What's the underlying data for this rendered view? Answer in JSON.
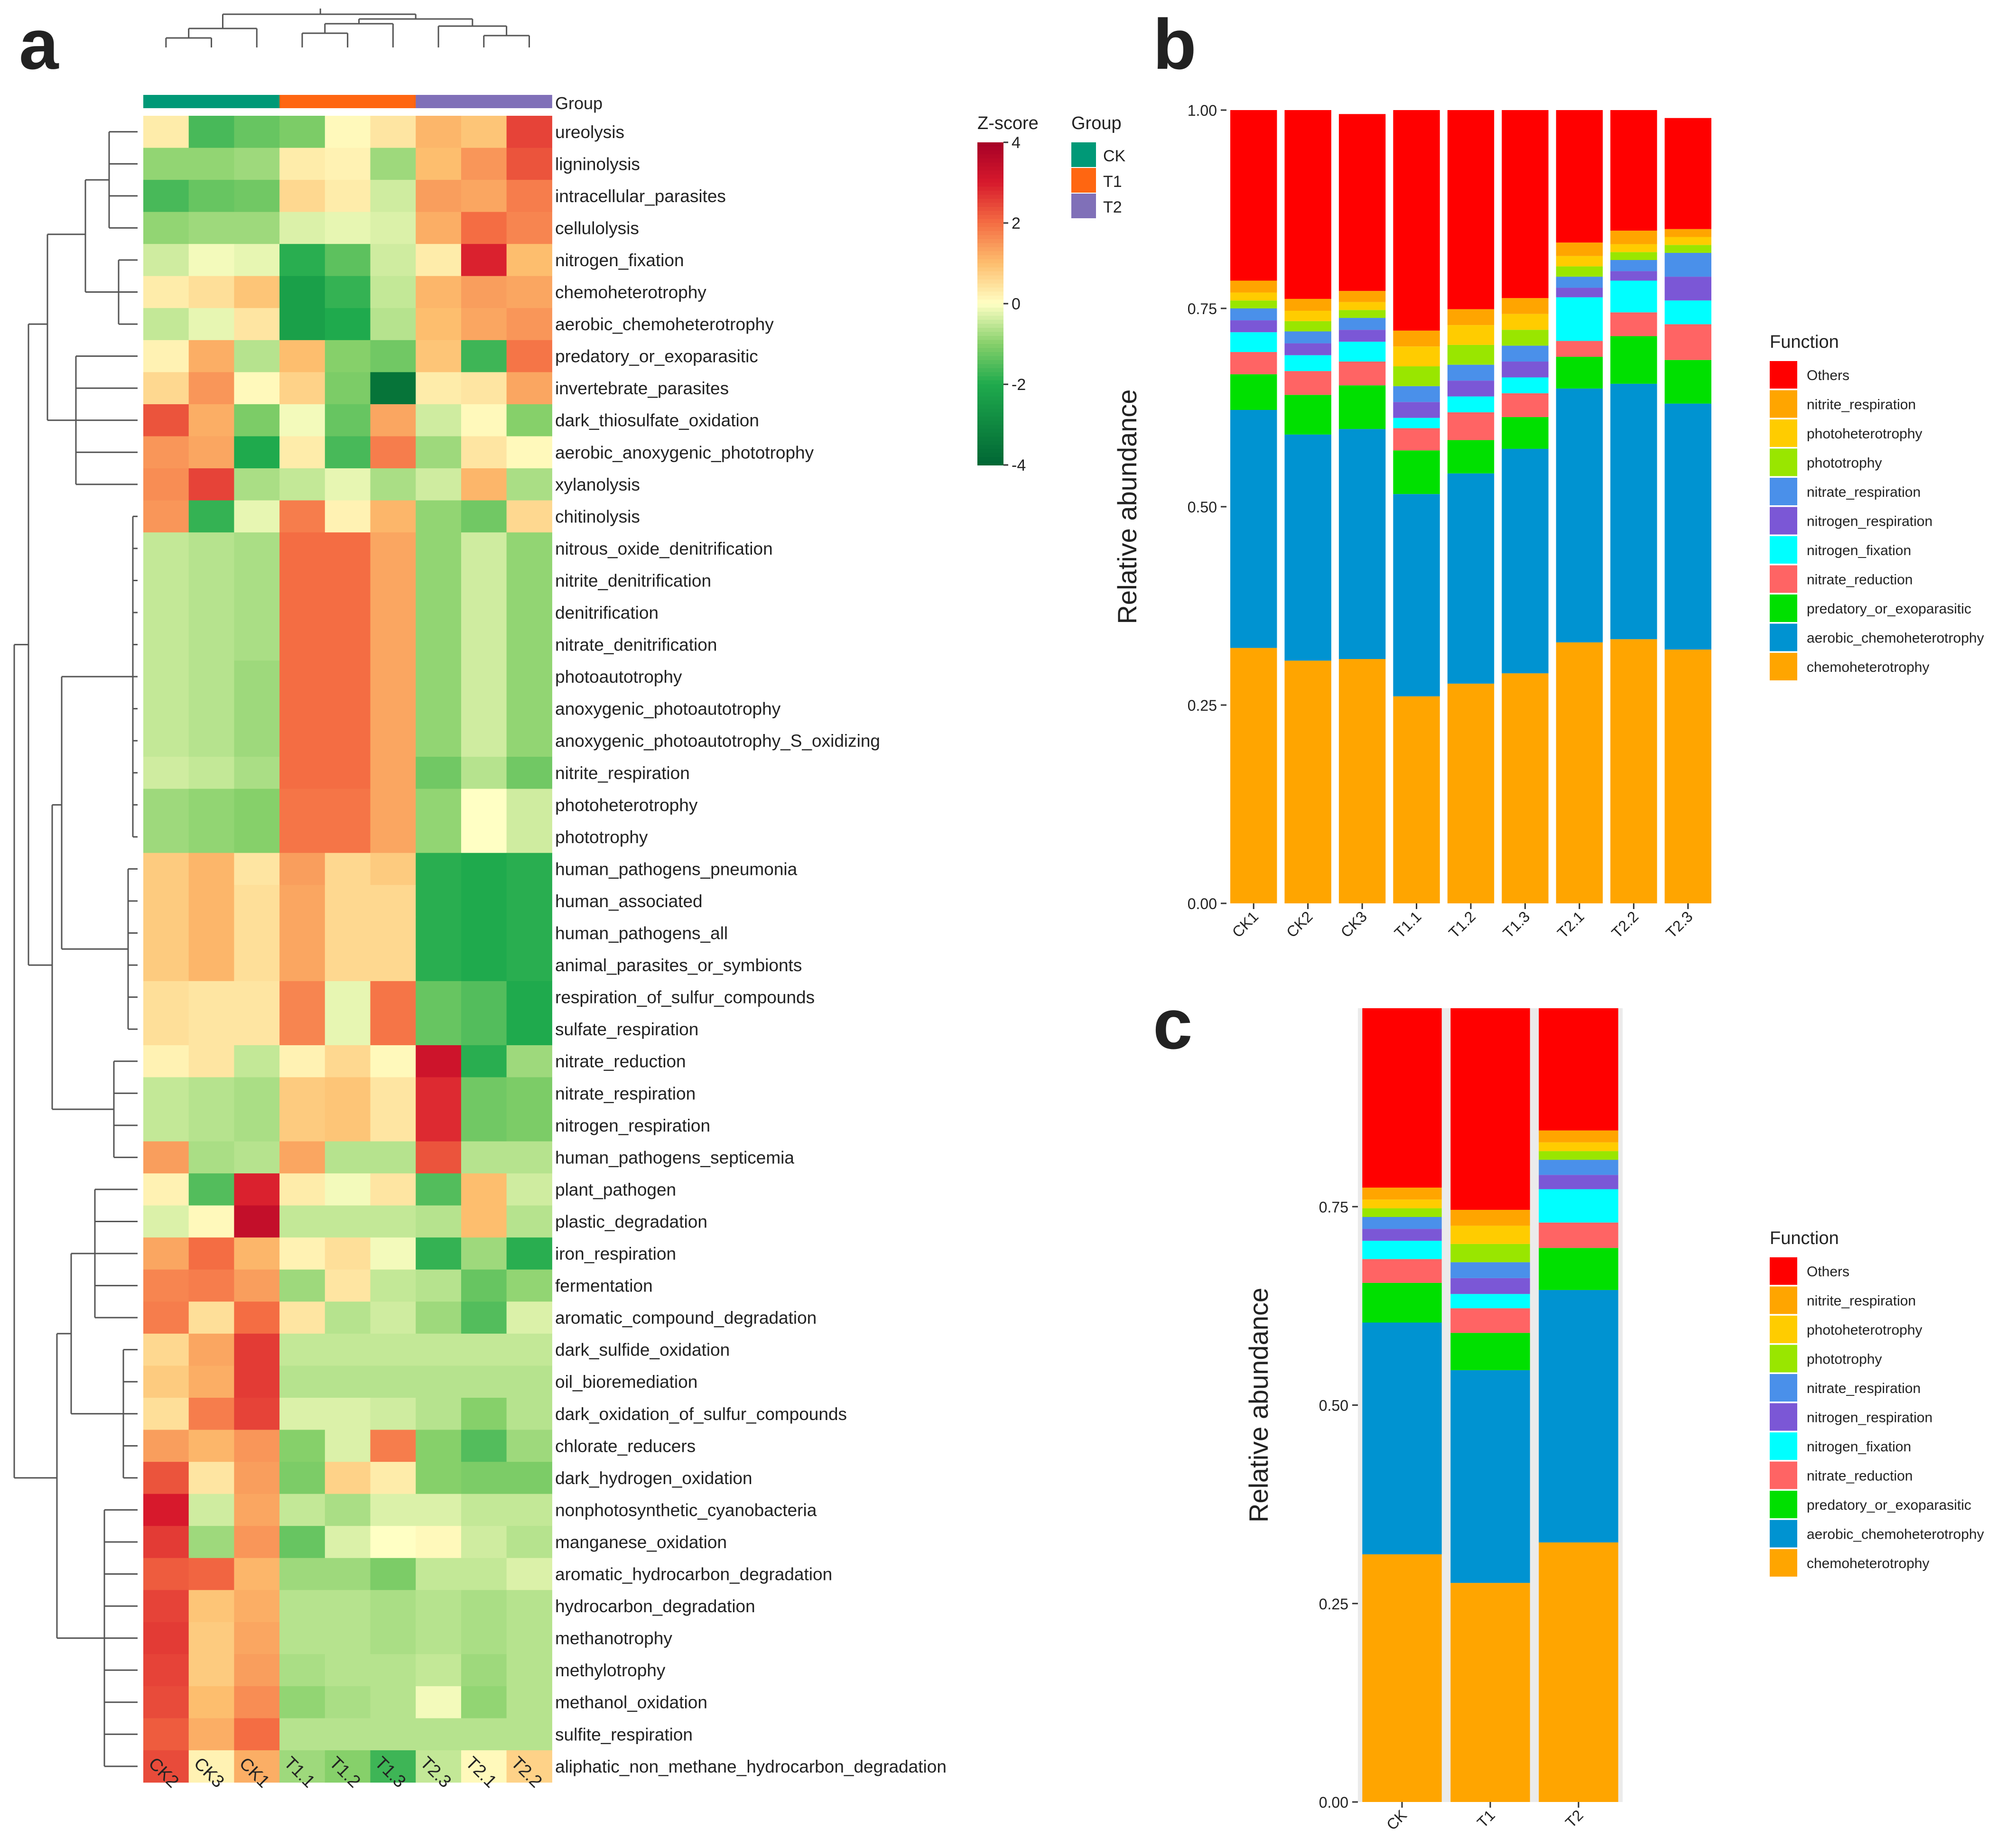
{
  "panel_letters": {
    "a": "a",
    "b": "b",
    "c": "c"
  },
  "heatmap": {
    "group_label": "Group",
    "columns": [
      "CK2",
      "CK3",
      "CK1",
      "T1.1",
      "T1.2",
      "T1.3",
      "T2.3",
      "T2.1",
      "T2.2"
    ],
    "column_groups": [
      "CK",
      "CK",
      "CK",
      "T1",
      "T1",
      "T1",
      "T2",
      "T2",
      "T2"
    ],
    "rows": [
      "ureolysis",
      "ligninolysis",
      "intracellular_parasites",
      "cellulolysis",
      "nitrogen_fixation",
      "chemoheterotrophy",
      "aerobic_chemoheterotrophy",
      "predatory_or_exoparasitic",
      "invertebrate_parasites",
      "dark_thiosulfate_oxidation",
      "aerobic_anoxygenic_phototrophy",
      "xylanolysis",
      "chitinolysis",
      "nitrous_oxide_denitrification",
      "nitrite_denitrification",
      "denitrification",
      "nitrate_denitrification",
      "photoautotrophy",
      "anoxygenic_photoautotrophy",
      "anoxygenic_photoautotrophy_S_oxidizing",
      "nitrite_respiration",
      "photoheterotrophy",
      "phototrophy",
      "human_pathogens_pneumonia",
      "human_associated",
      "human_pathogens_all",
      "animal_parasites_or_symbionts",
      "respiration_of_sulfur_compounds",
      "sulfate_respiration",
      "nitrate_reduction",
      "nitrate_respiration",
      "nitrogen_respiration",
      "human_pathogens_septicemia",
      "plant_pathogen",
      "plastic_degradation",
      "iron_respiration",
      "fermentation",
      "aromatic_compound_degradation",
      "dark_sulfide_oxidation",
      "oil_bioremediation",
      "dark_oxidation_of_sulfur_compounds",
      "chlorate_reducers",
      "dark_hydrogen_oxidation",
      "nonphotosynthetic_cyanobacteria",
      "manganese_oxidation",
      "aromatic_hydrocarbon_degradation",
      "hydrocarbon_degradation",
      "methanotrophy",
      "methylotrophy",
      "methanol_oxidation",
      "sulfite_respiration",
      "aliphatic_non_methane_hydrocarbon_degradation"
    ],
    "zscores": [
      [
        0.3,
        -1.6,
        -1.3,
        -1.1,
        0.1,
        0.4,
        1.1,
        0.9,
        2.5
      ],
      [
        -0.9,
        -0.9,
        -0.8,
        0.3,
        0.2,
        -0.8,
        1.0,
        1.5,
        2.3
      ],
      [
        -1.6,
        -1.3,
        -1.2,
        0.6,
        0.3,
        -0.4,
        1.4,
        1.3,
        1.8
      ],
      [
        -0.9,
        -0.8,
        -0.8,
        -0.3,
        -0.2,
        -0.3,
        1.2,
        2.0,
        1.7
      ],
      [
        -0.4,
        -0.1,
        -0.2,
        -1.9,
        -1.4,
        -0.4,
        0.3,
        2.9,
        1.0
      ],
      [
        0.3,
        0.5,
        0.9,
        -2.3,
        -1.8,
        -0.5,
        1.1,
        1.4,
        1.3
      ],
      [
        -0.5,
        -0.2,
        0.4,
        -2.3,
        -2.0,
        -0.6,
        1.0,
        1.3,
        1.5
      ],
      [
        0.2,
        1.2,
        -0.6,
        1.0,
        -1.0,
        -1.2,
        0.9,
        -1.7,
        1.9
      ],
      [
        0.6,
        1.5,
        0.1,
        0.7,
        -1.1,
        -3.6,
        0.3,
        0.4,
        1.3
      ],
      [
        2.3,
        1.2,
        -1.1,
        -0.1,
        -1.3,
        1.3,
        -0.4,
        0.1,
        -1.0
      ],
      [
        1.5,
        1.3,
        -2.0,
        0.3,
        -1.6,
        1.8,
        -0.8,
        0.4,
        0.1
      ],
      [
        1.6,
        2.5,
        -0.7,
        -0.5,
        -0.2,
        -0.7,
        -0.4,
        1.1,
        -0.7
      ],
      [
        1.5,
        -1.8,
        -0.2,
        1.8,
        0.2,
        1.1,
        -0.9,
        -1.2,
        0.6
      ],
      [
        -0.5,
        -0.6,
        -0.7,
        2.0,
        2.0,
        1.3,
        -0.9,
        -0.4,
        -0.9
      ],
      [
        -0.5,
        -0.6,
        -0.7,
        2.0,
        2.0,
        1.3,
        -0.9,
        -0.4,
        -0.9
      ],
      [
        -0.5,
        -0.6,
        -0.7,
        2.0,
        2.0,
        1.3,
        -0.9,
        -0.4,
        -0.9
      ],
      [
        -0.5,
        -0.6,
        -0.7,
        2.0,
        2.0,
        1.3,
        -0.9,
        -0.4,
        -0.9
      ],
      [
        -0.5,
        -0.6,
        -0.8,
        2.0,
        2.0,
        1.3,
        -0.9,
        -0.4,
        -0.9
      ],
      [
        -0.5,
        -0.6,
        -0.8,
        2.0,
        2.0,
        1.3,
        -0.9,
        -0.4,
        -0.9
      ],
      [
        -0.5,
        -0.6,
        -0.8,
        2.0,
        2.0,
        1.3,
        -0.9,
        -0.4,
        -0.9
      ],
      [
        -0.4,
        -0.5,
        -0.7,
        2.0,
        2.0,
        1.3,
        -1.2,
        -0.6,
        -1.2
      ],
      [
        -0.8,
        -0.9,
        -1.0,
        1.9,
        1.9,
        1.3,
        -0.9,
        0.0,
        -0.4
      ],
      [
        -0.8,
        -0.9,
        -1.0,
        1.9,
        1.9,
        1.3,
        -0.9,
        0.0,
        -0.4
      ],
      [
        0.8,
        1.1,
        0.4,
        1.4,
        0.6,
        0.8,
        -1.9,
        -2.0,
        -1.9
      ],
      [
        0.8,
        1.1,
        0.5,
        1.3,
        0.6,
        0.6,
        -1.9,
        -2.0,
        -1.9
      ],
      [
        0.8,
        1.1,
        0.5,
        1.3,
        0.6,
        0.6,
        -1.9,
        -2.0,
        -1.9
      ],
      [
        0.8,
        1.1,
        0.5,
        1.3,
        0.6,
        0.6,
        -1.9,
        -2.0,
        -1.9
      ],
      [
        0.5,
        0.4,
        0.4,
        1.7,
        -0.2,
        1.9,
        -1.3,
        -1.5,
        -2.0
      ],
      [
        0.5,
        0.4,
        0.4,
        1.7,
        -0.2,
        1.9,
        -1.3,
        -1.5,
        -2.0
      ],
      [
        0.2,
        0.4,
        -0.5,
        0.2,
        0.6,
        0.1,
        3.2,
        -1.9,
        -0.8
      ],
      [
        -0.5,
        -0.6,
        -0.7,
        0.8,
        0.9,
        0.4,
        2.8,
        -1.2,
        -1.1
      ],
      [
        -0.5,
        -0.6,
        -0.7,
        0.8,
        0.9,
        0.4,
        2.8,
        -1.2,
        -1.1
      ],
      [
        1.4,
        -0.7,
        -0.6,
        1.3,
        -0.6,
        -0.6,
        2.3,
        -0.6,
        -0.6
      ],
      [
        0.2,
        -1.5,
        2.9,
        0.3,
        -0.1,
        0.4,
        -1.5,
        1.0,
        -0.4
      ],
      [
        -0.3,
        0.1,
        3.4,
        -0.5,
        -0.5,
        -0.5,
        -0.6,
        1.0,
        -0.6
      ],
      [
        1.3,
        2.0,
        1.1,
        0.2,
        0.5,
        -0.1,
        -1.8,
        -0.8,
        -1.9
      ],
      [
        1.7,
        1.8,
        1.4,
        -0.8,
        0.4,
        -0.5,
        -0.6,
        -1.3,
        -0.9
      ],
      [
        1.8,
        0.5,
        2.0,
        0.4,
        -0.6,
        -0.4,
        -0.8,
        -1.5,
        -0.3
      ],
      [
        0.6,
        1.3,
        2.6,
        -0.5,
        -0.5,
        -0.5,
        -0.5,
        -0.5,
        -0.5
      ],
      [
        0.8,
        1.2,
        2.6,
        -0.6,
        -0.6,
        -0.6,
        -0.6,
        -0.6,
        -0.6
      ],
      [
        0.5,
        1.8,
        2.5,
        -0.3,
        -0.3,
        -0.4,
        -0.6,
        -1.0,
        -0.6
      ],
      [
        1.4,
        1.1,
        1.5,
        -1.0,
        -0.3,
        1.8,
        -1.0,
        -1.5,
        -0.8
      ],
      [
        2.3,
        0.4,
        1.4,
        -1.1,
        0.7,
        0.3,
        -1.0,
        -1.1,
        -1.1
      ],
      [
        3.0,
        -0.4,
        1.3,
        -0.5,
        -0.7,
        -0.3,
        -0.3,
        -0.5,
        -0.5
      ],
      [
        2.6,
        -0.8,
        1.5,
        -1.3,
        -0.3,
        0.0,
        0.1,
        -0.4,
        -0.6
      ],
      [
        2.2,
        2.1,
        1.1,
        -0.8,
        -0.8,
        -1.1,
        -0.5,
        -0.5,
        -0.3
      ],
      [
        2.5,
        0.9,
        1.2,
        -0.6,
        -0.6,
        -0.7,
        -0.6,
        -0.7,
        -0.6
      ],
      [
        2.6,
        0.8,
        1.3,
        -0.6,
        -0.6,
        -0.7,
        -0.6,
        -0.7,
        -0.6
      ],
      [
        2.5,
        0.8,
        1.4,
        -0.7,
        -0.6,
        -0.6,
        -0.5,
        -0.8,
        -0.6
      ],
      [
        2.4,
        1.0,
        1.6,
        -0.9,
        -0.7,
        -0.6,
        -0.1,
        -0.9,
        -0.6
      ],
      [
        2.2,
        1.2,
        2.0,
        -0.6,
        -0.6,
        -0.6,
        -0.6,
        -0.6,
        -0.6
      ],
      [
        2.4,
        0.2,
        1.2,
        -0.8,
        -1.0,
        -1.7,
        -0.5,
        0.1,
        0.7
      ]
    ],
    "legend": {
      "zscore_title": "Z-score",
      "zscore_ticks": [
        4,
        2,
        0,
        -2,
        -4
      ],
      "zscore_range": [
        -4,
        4
      ],
      "group_title": "Group",
      "groups": [
        {
          "name": "CK",
          "color": "#009977"
        },
        {
          "name": "T1",
          "color": "#ff6611"
        },
        {
          "name": "T2",
          "color": "#8070b8"
        }
      ]
    }
  },
  "chart_data": [
    {
      "type": "bar",
      "stacked": true,
      "panel": "b",
      "title": "",
      "xlabel": "",
      "ylabel": "Relative abundance",
      "ylim": [
        0,
        1
      ],
      "yticks": [
        "0.00",
        "0.25",
        "0.50",
        "0.75",
        "1.00"
      ],
      "categories": [
        "CK1",
        "CK2",
        "CK3",
        "T1.1",
        "T1.2",
        "T1.3",
        "T2.1",
        "T2.2",
        "T2.3"
      ],
      "legend_title": "Function",
      "series": [
        {
          "name": "chemoheterotrophy",
          "color": "#ffa500",
          "values": [
            0.322,
            0.306,
            0.308,
            0.261,
            0.277,
            0.29,
            0.329,
            0.333,
            0.32
          ]
        },
        {
          "name": "aerobic_chemoheterotrophy",
          "color": "#0093d1",
          "values": [
            0.3,
            0.285,
            0.29,
            0.255,
            0.265,
            0.283,
            0.32,
            0.322,
            0.31
          ]
        },
        {
          "name": "predatory_or_exoparasitic",
          "color": "#00e000",
          "values": [
            0.045,
            0.05,
            0.055,
            0.055,
            0.042,
            0.04,
            0.04,
            0.06,
            0.055
          ]
        },
        {
          "name": "nitrate_reduction",
          "color": "#ff6464",
          "values": [
            0.028,
            0.03,
            0.03,
            0.028,
            0.035,
            0.03,
            0.02,
            0.03,
            0.045
          ]
        },
        {
          "name": "nitrogen_fixation",
          "color": "#00ffff",
          "values": [
            0.025,
            0.02,
            0.025,
            0.013,
            0.02,
            0.02,
            0.055,
            0.04,
            0.03
          ]
        },
        {
          "name": "nitrogen_respiration",
          "color": "#7b57d6",
          "values": [
            0.015,
            0.015,
            0.015,
            0.02,
            0.02,
            0.02,
            0.012,
            0.012,
            0.03
          ]
        },
        {
          "name": "nitrate_respiration",
          "color": "#4a90ea",
          "values": [
            0.015,
            0.015,
            0.015,
            0.02,
            0.02,
            0.02,
            0.014,
            0.014,
            0.03
          ]
        },
        {
          "name": "phototrophy",
          "color": "#99e600",
          "values": [
            0.01,
            0.013,
            0.01,
            0.025,
            0.025,
            0.02,
            0.013,
            0.01,
            0.01
          ]
        },
        {
          "name": "photoheterotrophy",
          "color": "#ffcc00",
          "values": [
            0.01,
            0.013,
            0.01,
            0.025,
            0.025,
            0.02,
            0.013,
            0.01,
            0.01
          ]
        },
        {
          "name": "nitrite_respiration",
          "color": "#ffa500",
          "values": [
            0.015,
            0.015,
            0.014,
            0.02,
            0.02,
            0.02,
            0.017,
            0.017,
            0.01
          ]
        },
        {
          "name": "Others",
          "color": "#ff0000",
          "values": [
            0.215,
            0.238,
            0.223,
            0.278,
            0.251,
            0.237,
            0.167,
            0.152,
            0.14
          ]
        }
      ]
    },
    {
      "type": "bar",
      "stacked": true,
      "panel": "c",
      "title": "",
      "xlabel": "",
      "ylabel": "Relative abundance",
      "ylim": [
        0,
        1
      ],
      "yticks": [
        "0.00",
        "0.25",
        "0.50",
        "0.75"
      ],
      "categories": [
        "CK",
        "T1",
        "T2"
      ],
      "legend_title": "Function",
      "series": [
        {
          "name": "chemoheterotrophy",
          "color": "#ffa500",
          "values": [
            0.312,
            0.276,
            0.327
          ]
        },
        {
          "name": "aerobic_chemoheterotrophy",
          "color": "#0093d1",
          "values": [
            0.292,
            0.268,
            0.318
          ]
        },
        {
          "name": "predatory_or_exoparasitic",
          "color": "#00e000",
          "values": [
            0.05,
            0.047,
            0.053
          ]
        },
        {
          "name": "nitrate_reduction",
          "color": "#ff6464",
          "values": [
            0.03,
            0.031,
            0.032
          ]
        },
        {
          "name": "nitrogen_fixation",
          "color": "#00ffff",
          "values": [
            0.023,
            0.018,
            0.042
          ]
        },
        {
          "name": "nitrogen_respiration",
          "color": "#7b57d6",
          "values": [
            0.015,
            0.02,
            0.018
          ]
        },
        {
          "name": "nitrate_respiration",
          "color": "#4a90ea",
          "values": [
            0.015,
            0.02,
            0.019
          ]
        },
        {
          "name": "phototrophy",
          "color": "#99e600",
          "values": [
            0.011,
            0.023,
            0.011
          ]
        },
        {
          "name": "photoheterotrophy",
          "color": "#ffcc00",
          "values": [
            0.011,
            0.023,
            0.011
          ]
        },
        {
          "name": "nitrite_respiration",
          "color": "#ffa500",
          "values": [
            0.015,
            0.02,
            0.015
          ]
        },
        {
          "name": "Others",
          "color": "#ff0000",
          "values": [
            0.226,
            0.254,
            0.154
          ]
        }
      ]
    }
  ]
}
